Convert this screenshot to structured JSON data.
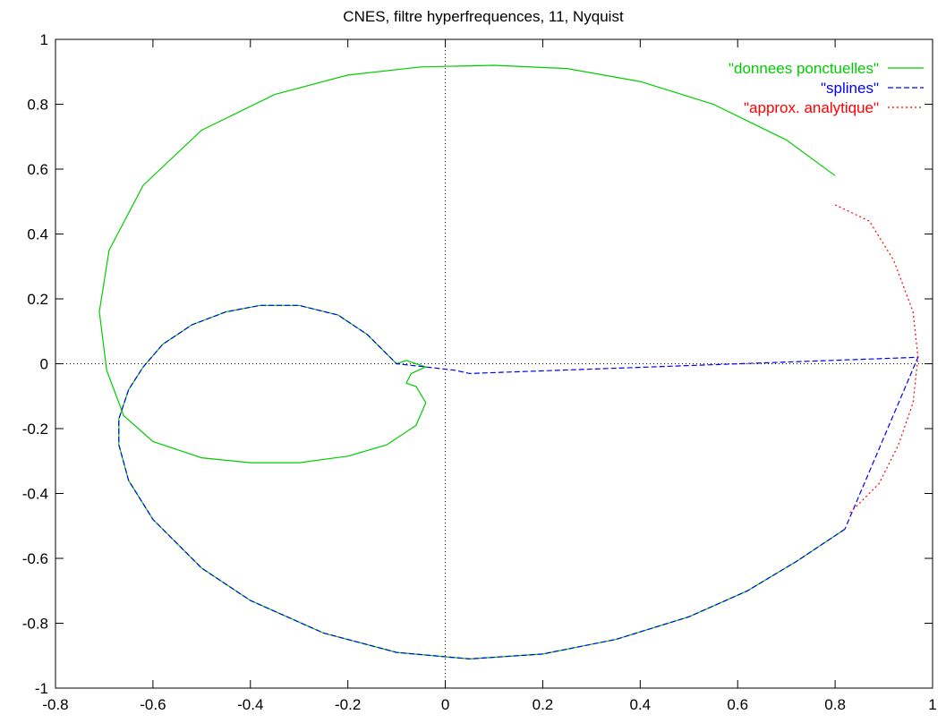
{
  "chart_data": {
    "type": "line",
    "title": "CNES, filtre hyperfrequences, 11, Nyquist",
    "xlabel": "",
    "ylabel": "",
    "xlim": [
      -0.8,
      1.0
    ],
    "ylim": [
      -1.0,
      1.0
    ],
    "xticks": [
      "-0.8",
      "-0.6",
      "-0.4",
      "-0.2",
      "0",
      "0.2",
      "0.4",
      "0.6",
      "0.8",
      "1"
    ],
    "yticks": [
      "-1",
      "-0.8",
      "-0.6",
      "-0.4",
      "-0.2",
      "0",
      "0.2",
      "0.4",
      "0.6",
      "0.8",
      "1"
    ],
    "zero_axes": true,
    "grid": false,
    "legend_position": "top-right",
    "series": [
      {
        "name": "\"donnees ponctuelles\"",
        "color": "#00cc00",
        "dash": "solid",
        "points": [
          [
            0.8,
            0.58
          ],
          [
            0.7,
            0.69
          ],
          [
            0.55,
            0.8
          ],
          [
            0.4,
            0.87
          ],
          [
            0.25,
            0.91
          ],
          [
            0.1,
            0.92
          ],
          [
            -0.05,
            0.915
          ],
          [
            -0.2,
            0.89
          ],
          [
            -0.35,
            0.83
          ],
          [
            -0.5,
            0.72
          ],
          [
            -0.62,
            0.55
          ],
          [
            -0.69,
            0.35
          ],
          [
            -0.71,
            0.16
          ],
          [
            -0.695,
            -0.02
          ],
          [
            -0.66,
            -0.16
          ],
          [
            -0.6,
            -0.24
          ],
          [
            -0.5,
            -0.29
          ],
          [
            -0.4,
            -0.305
          ],
          [
            -0.3,
            -0.305
          ],
          [
            -0.2,
            -0.285
          ],
          [
            -0.12,
            -0.25
          ],
          [
            -0.06,
            -0.19
          ],
          [
            -0.04,
            -0.12
          ],
          [
            -0.06,
            -0.07
          ],
          [
            -0.08,
            -0.06
          ],
          [
            -0.07,
            -0.03
          ],
          [
            -0.04,
            -0.01
          ],
          [
            -0.08,
            0.01
          ],
          [
            -0.1,
            0.0
          ],
          [
            -0.16,
            0.09
          ],
          [
            -0.22,
            0.15
          ],
          [
            -0.3,
            0.18
          ],
          [
            -0.38,
            0.18
          ],
          [
            -0.45,
            0.16
          ],
          [
            -0.52,
            0.12
          ],
          [
            -0.58,
            0.06
          ],
          [
            -0.62,
            -0.01
          ],
          [
            -0.65,
            -0.08
          ],
          [
            -0.67,
            -0.17
          ],
          [
            -0.67,
            -0.25
          ],
          [
            -0.65,
            -0.36
          ],
          [
            -0.6,
            -0.48
          ],
          [
            -0.5,
            -0.63
          ],
          [
            -0.4,
            -0.73
          ],
          [
            -0.25,
            -0.83
          ],
          [
            -0.1,
            -0.89
          ],
          [
            0.05,
            -0.91
          ],
          [
            0.2,
            -0.895
          ],
          [
            0.35,
            -0.85
          ],
          [
            0.5,
            -0.78
          ],
          [
            0.62,
            -0.7
          ],
          [
            0.72,
            -0.61
          ],
          [
            0.82,
            -0.51
          ]
        ]
      },
      {
        "name": "\"splines\"",
        "color": "#0000ff",
        "dash": "long",
        "points": [
          [
            0.82,
            -0.51
          ],
          [
            0.72,
            -0.61
          ],
          [
            0.62,
            -0.7
          ],
          [
            0.5,
            -0.78
          ],
          [
            0.35,
            -0.85
          ],
          [
            0.2,
            -0.895
          ],
          [
            0.05,
            -0.91
          ],
          [
            -0.1,
            -0.89
          ],
          [
            -0.25,
            -0.83
          ],
          [
            -0.4,
            -0.73
          ],
          [
            -0.5,
            -0.63
          ],
          [
            -0.6,
            -0.48
          ],
          [
            -0.65,
            -0.36
          ],
          [
            -0.67,
            -0.25
          ],
          [
            -0.67,
            -0.17
          ],
          [
            -0.65,
            -0.08
          ],
          [
            -0.62,
            -0.01
          ],
          [
            -0.58,
            0.06
          ],
          [
            -0.52,
            0.12
          ],
          [
            -0.45,
            0.16
          ],
          [
            -0.38,
            0.18
          ],
          [
            -0.3,
            0.18
          ],
          [
            -0.22,
            0.15
          ],
          [
            -0.16,
            0.09
          ],
          [
            -0.1,
            0.0
          ],
          [
            -0.04,
            -0.01
          ],
          [
            0.02,
            -0.02
          ],
          [
            0.05,
            -0.03
          ],
          [
            0.97,
            0.02
          ],
          [
            0.82,
            -0.51
          ]
        ]
      },
      {
        "name": "\"approx. analytique\"",
        "color": "#ff0000",
        "dash": "short",
        "points": [
          [
            0.8,
            0.49
          ],
          [
            0.87,
            0.44
          ],
          [
            0.92,
            0.32
          ],
          [
            0.96,
            0.16
          ],
          [
            0.97,
            0.02
          ],
          [
            0.96,
            -0.12
          ],
          [
            0.93,
            -0.25
          ],
          [
            0.89,
            -0.37
          ],
          [
            0.83,
            -0.46
          ]
        ]
      }
    ]
  }
}
